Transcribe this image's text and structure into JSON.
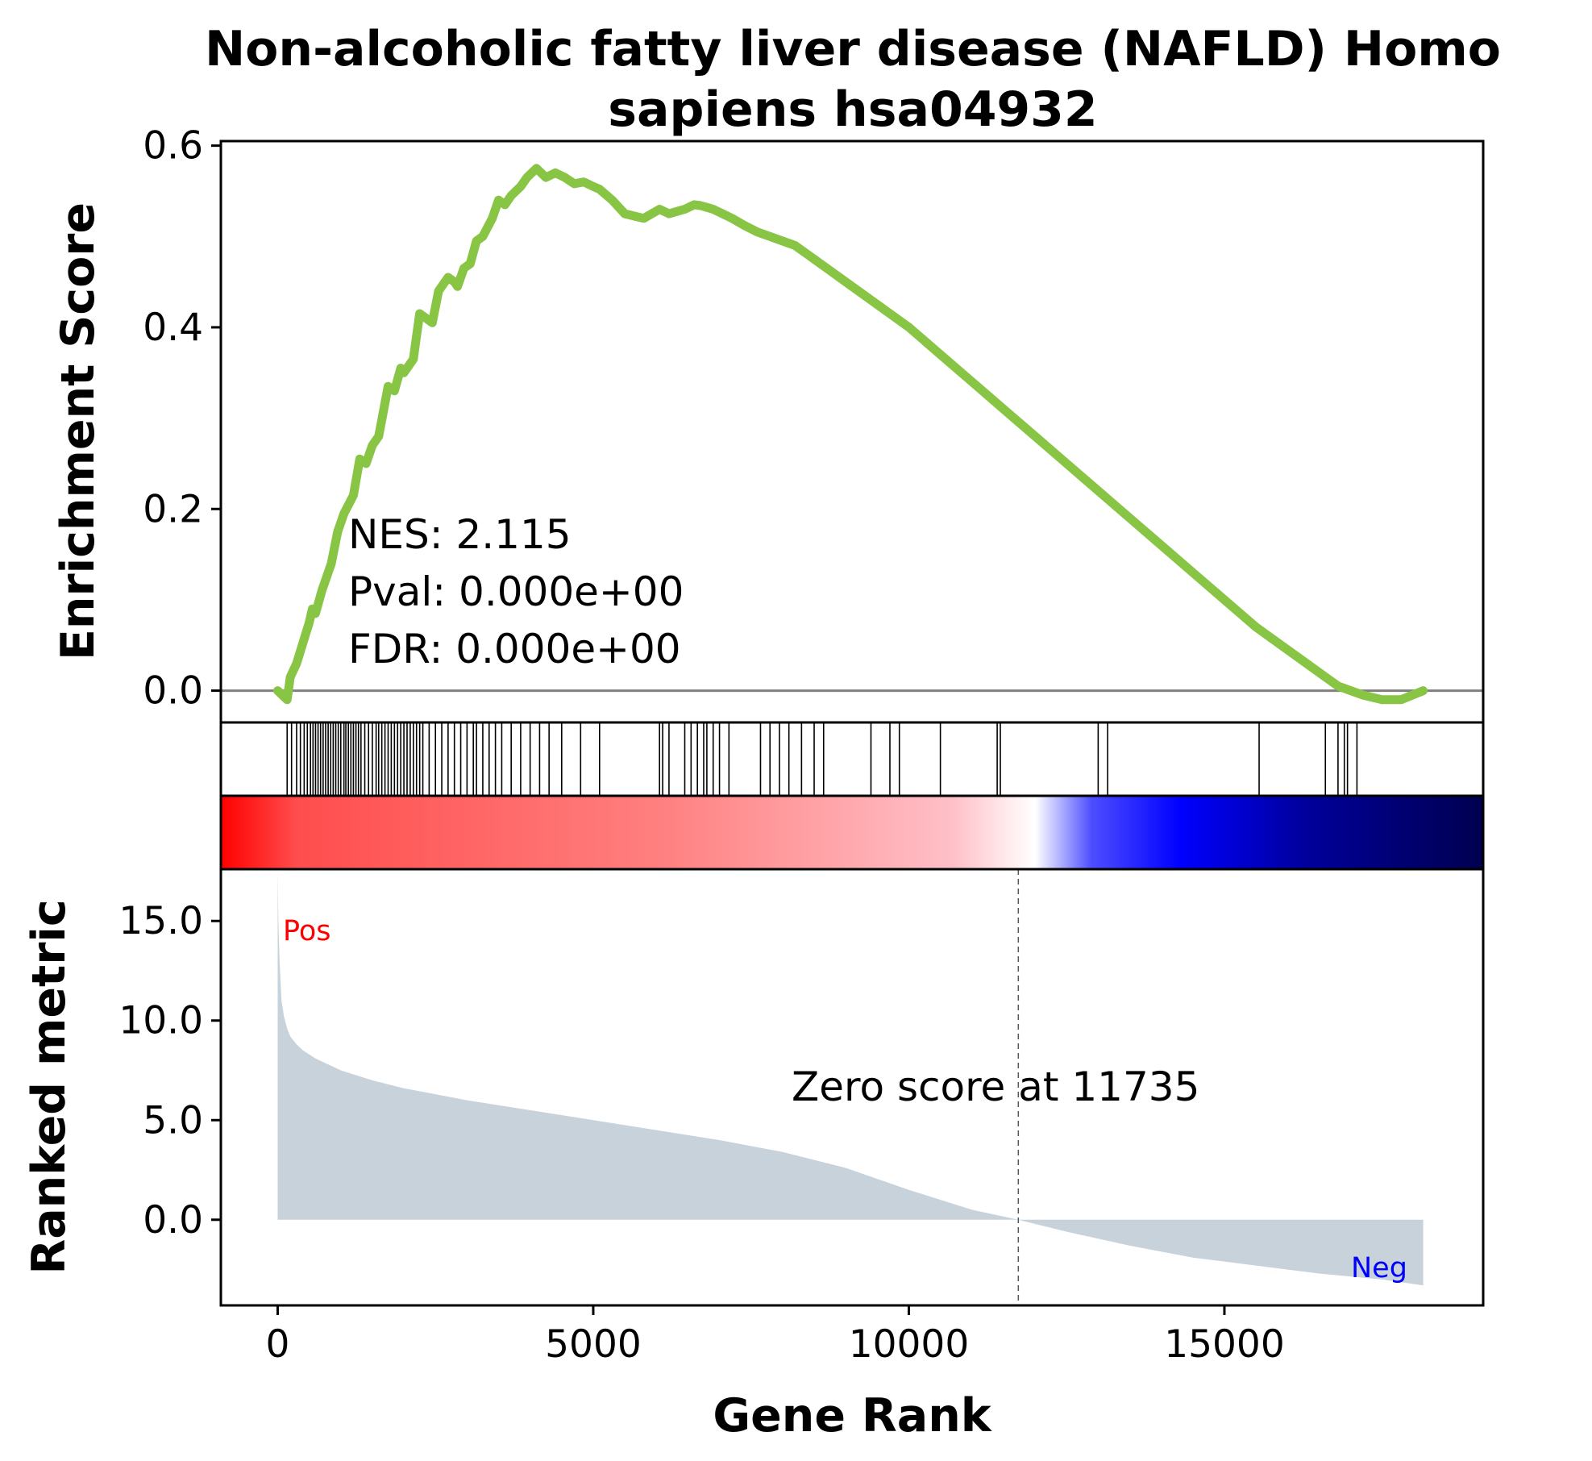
{
  "chart_data": {
    "type": "line",
    "title": [
      "Non-alcoholic fatty liver disease (NAFLD) Homo",
      "sapiens hsa04932"
    ],
    "xlabel": "Gene Rank",
    "es_panel": {
      "ylabel": "Enrichment Score",
      "ylim": [
        -0.035,
        0.605
      ],
      "yticks": [
        0.0,
        0.2,
        0.4,
        0.6
      ],
      "ytick_labels": [
        "0.0",
        "0.2",
        "0.4",
        "0.6"
      ],
      "line_color": "#88c544",
      "zero_line_color": "#808080",
      "series": [
        {
          "x": [
            0,
            150,
            200,
            300,
            500,
            550,
            600,
            700,
            850,
            950,
            1050,
            1200,
            1300,
            1400,
            1500,
            1600,
            1750,
            1850,
            1950,
            2000,
            2150,
            2250,
            2350,
            2450,
            2550,
            2700,
            2800,
            2850,
            2950,
            3050,
            3150,
            3250,
            3400,
            3500,
            3600,
            3700,
            3850,
            3950,
            4100,
            4250,
            4400,
            4550,
            4700,
            4850,
            5000,
            5100,
            5300,
            5500,
            5800,
            6050,
            6200,
            6350,
            6450,
            6600,
            6700,
            6800,
            6900,
            7050,
            7200,
            7400,
            7600,
            7800,
            8000,
            8200,
            8400,
            8700,
            9000,
            9300,
            9600,
            10000,
            10500,
            11000,
            11500,
            12000,
            12500,
            13000,
            13500,
            14000,
            14500,
            15000,
            15500,
            16000,
            16500,
            16800,
            17000,
            17200,
            17500,
            17800,
            18150
          ],
          "y": [
            0.0,
            -0.01,
            0.015,
            0.03,
            0.075,
            0.09,
            0.085,
            0.11,
            0.14,
            0.175,
            0.195,
            0.215,
            0.255,
            0.25,
            0.27,
            0.28,
            0.335,
            0.33,
            0.355,
            0.35,
            0.365,
            0.415,
            0.41,
            0.405,
            0.44,
            0.455,
            0.45,
            0.445,
            0.465,
            0.47,
            0.495,
            0.5,
            0.52,
            0.54,
            0.535,
            0.545,
            0.555,
            0.565,
            0.575,
            0.565,
            0.57,
            0.565,
            0.558,
            0.56,
            0.555,
            0.552,
            0.54,
            0.525,
            0.52,
            0.53,
            0.525,
            0.528,
            0.53,
            0.535,
            0.534,
            0.532,
            0.53,
            0.525,
            0.52,
            0.512,
            0.505,
            0.5,
            0.495,
            0.49,
            0.48,
            0.465,
            0.45,
            0.435,
            0.42,
            0.4,
            0.37,
            0.34,
            0.31,
            0.28,
            0.25,
            0.22,
            0.19,
            0.16,
            0.13,
            0.1,
            0.07,
            0.045,
            0.02,
            0.005,
            0.0,
            -0.005,
            -0.01,
            -0.01,
            0.0
          ]
        }
      ],
      "stats": [
        "NES: 2.115",
        "Pval: 0.000e+00",
        "FDR: 0.000e+00"
      ]
    },
    "hits_panel": {
      "hit_positions": [
        150,
        220,
        300,
        360,
        420,
        470,
        520,
        560,
        600,
        640,
        680,
        720,
        760,
        800,
        840,
        880,
        920,
        960,
        1000,
        1050,
        1080,
        1120,
        1160,
        1200,
        1240,
        1280,
        1320,
        1380,
        1440,
        1500,
        1560,
        1600,
        1650,
        1700,
        1750,
        1800,
        1850,
        1900,
        1950,
        2000,
        2050,
        2100,
        2150,
        2200,
        2250,
        2300,
        2400,
        2500,
        2600,
        2700,
        2800,
        2900,
        3000,
        3100,
        3150,
        3250,
        3350,
        3450,
        3550,
        3700,
        3850,
        4000,
        4150,
        4300,
        4500,
        4800,
        5100,
        6050,
        6100,
        6200,
        6450,
        6550,
        6650,
        6750,
        6800,
        6900,
        7000,
        7150,
        7650,
        7800,
        7950,
        8100,
        8300,
        8500,
        8650,
        9400,
        9700,
        9850,
        10500,
        11400,
        11450,
        13000,
        13150,
        15550,
        16600,
        16800,
        16900,
        16950,
        17100
      ]
    },
    "gradient_colors": [
      "#ff0000",
      "#ff4d4d",
      "#ff8080",
      "#ffc0c8",
      "#ffffff",
      "#4d4dff",
      "#0000ff",
      "#00009a",
      "#000050"
    ],
    "rank_panel": {
      "ylabel": "Ranked metric",
      "ylim": [
        -4.3,
        17.6
      ],
      "yticks": [
        0.0,
        5.0,
        10.0,
        15.0
      ],
      "ytick_labels": [
        "0.0",
        "5.0",
        "10.0",
        "15.0"
      ],
      "fill_color": "#c7d2db",
      "series": [
        {
          "x": [
            0,
            10,
            30,
            60,
            100,
            150,
            200,
            300,
            400,
            600,
            800,
            1000,
            1500,
            2000,
            2500,
            3000,
            4000,
            5000,
            6000,
            7000,
            8000,
            9000,
            10000,
            11000,
            11735,
            12500,
            13500,
            14500,
            15500,
            16500,
            17500,
            18150
          ],
          "y": [
            17.5,
            15.0,
            13.0,
            11.0,
            10.2,
            9.6,
            9.2,
            8.8,
            8.5,
            8.1,
            7.8,
            7.5,
            7.0,
            6.6,
            6.3,
            6.0,
            5.5,
            5.0,
            4.5,
            4.0,
            3.4,
            2.6,
            1.5,
            0.5,
            0.0,
            -0.6,
            -1.3,
            -1.9,
            -2.3,
            -2.7,
            -3.0,
            -3.3
          ]
        }
      ],
      "zero_score_x": 11735,
      "zero_score_label": "Zero score at 11735",
      "pos_label": "Pos",
      "neg_label": "Neg",
      "pos_color": "#ff0000",
      "neg_color": "#0000ff"
    },
    "xlim": [
      -900,
      19100
    ],
    "xticks": [
      0,
      5000,
      10000,
      15000
    ],
    "xtick_labels": [
      "0",
      "5000",
      "10000",
      "15000"
    ],
    "grid": false
  }
}
